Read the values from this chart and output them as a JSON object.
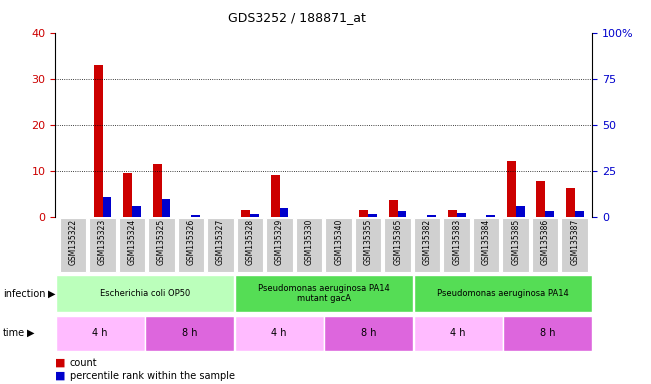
{
  "title": "GDS3252 / 188871_at",
  "samples": [
    "GSM135322",
    "GSM135323",
    "GSM135324",
    "GSM135325",
    "GSM135326",
    "GSM135327",
    "GSM135328",
    "GSM135329",
    "GSM135330",
    "GSM135340",
    "GSM135355",
    "GSM135365",
    "GSM135382",
    "GSM135383",
    "GSM135384",
    "GSM135385",
    "GSM135386",
    "GSM135387"
  ],
  "counts": [
    0,
    33,
    9.5,
    11.5,
    0,
    0,
    1.5,
    9.2,
    0,
    0,
    1.5,
    3.7,
    0,
    1.5,
    0,
    12.2,
    7.7,
    6.2
  ],
  "percentiles": [
    0,
    11,
    6,
    10,
    1,
    0,
    1.5,
    5,
    0,
    0,
    1.5,
    3,
    1,
    2,
    1,
    6,
    3.5,
    3
  ],
  "count_color": "#cc0000",
  "percentile_color": "#0000cc",
  "ylim_left": [
    0,
    40
  ],
  "ylim_right": [
    0,
    100
  ],
  "yticks_left": [
    0,
    10,
    20,
    30,
    40
  ],
  "yticks_right": [
    0,
    25,
    50,
    75,
    100
  ],
  "ytick_labels_right": [
    "0",
    "25",
    "50",
    "75",
    "100%"
  ],
  "infection_groups": [
    {
      "label": "Escherichia coli OP50",
      "start": 0,
      "end": 6,
      "color": "#bbffbb"
    },
    {
      "label": "Pseudomonas aeruginosa PA14\nmutant gacA",
      "start": 6,
      "end": 12,
      "color": "#55dd55"
    },
    {
      "label": "Pseudomonas aeruginosa PA14",
      "start": 12,
      "end": 18,
      "color": "#55dd55"
    }
  ],
  "time_groups": [
    {
      "label": "4 h",
      "start": 0,
      "end": 3,
      "color": "#ffbbff"
    },
    {
      "label": "8 h",
      "start": 3,
      "end": 6,
      "color": "#dd66dd"
    },
    {
      "label": "4 h",
      "start": 6,
      "end": 9,
      "color": "#ffbbff"
    },
    {
      "label": "8 h",
      "start": 9,
      "end": 12,
      "color": "#dd66dd"
    },
    {
      "label": "4 h",
      "start": 12,
      "end": 15,
      "color": "#ffbbff"
    },
    {
      "label": "8 h",
      "start": 15,
      "end": 18,
      "color": "#dd66dd"
    }
  ],
  "bar_width": 0.3,
  "background_color": "#ffffff"
}
